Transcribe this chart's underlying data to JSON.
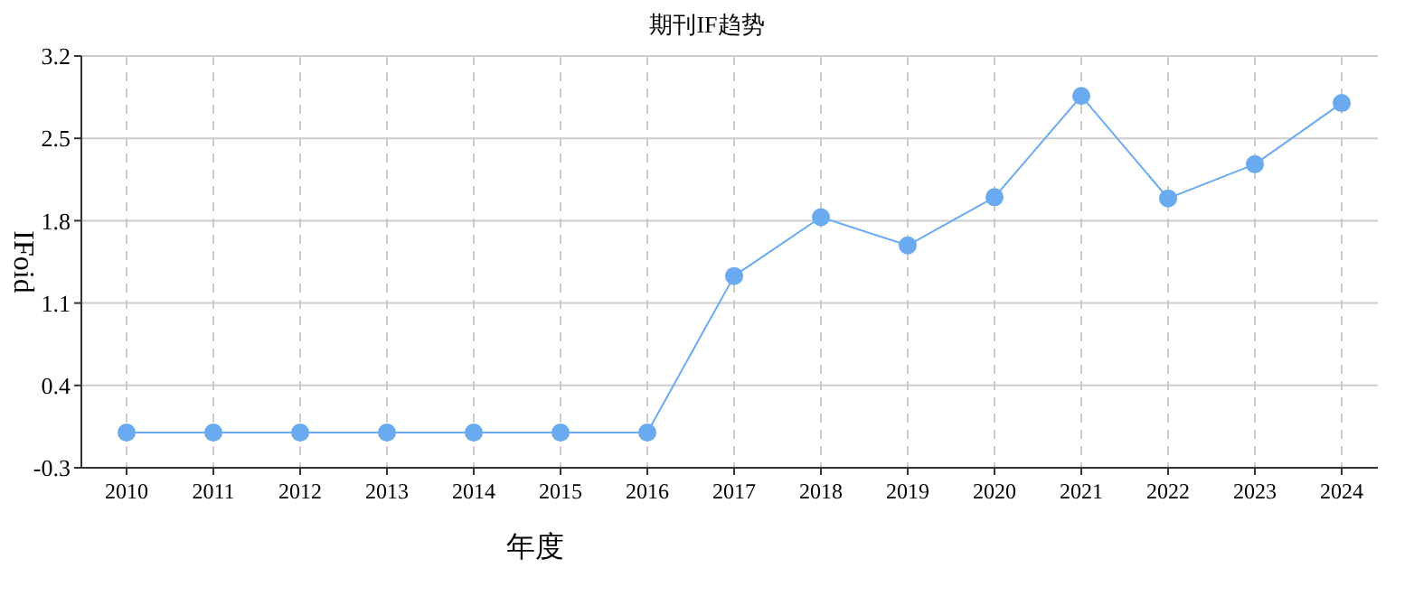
{
  "chart_data": {
    "type": "line",
    "title": "期刊IF趋势",
    "xlabel": "年度",
    "ylabel": "IFoid",
    "categories": [
      "2010",
      "2011",
      "2012",
      "2013",
      "2014",
      "2015",
      "2016",
      "2017",
      "2018",
      "2019",
      "2020",
      "2021",
      "2022",
      "2023",
      "2024"
    ],
    "series": [
      {
        "color": "#6aaaf0",
        "values": [
          0,
          0,
          0,
          0,
          0,
          0,
          0,
          1.33,
          1.83,
          1.59,
          2.0,
          2.86,
          1.99,
          2.28,
          2.8
        ]
      }
    ],
    "ylim": [
      -0.3,
      3.2
    ],
    "yticks": [
      -0.3,
      0.4,
      1.1,
      1.8,
      2.5,
      3.2
    ],
    "grid": true,
    "marker": "circle",
    "line_style": "solid"
  }
}
